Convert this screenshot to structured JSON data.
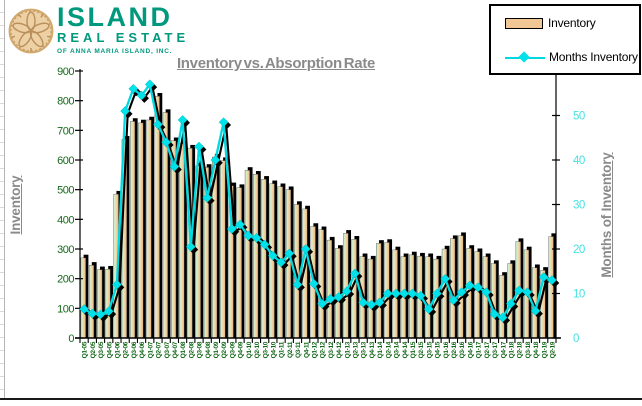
{
  "logo": {
    "title": "ISLAND",
    "subtitle": "REAL ESTATE",
    "tagline": "OF ANNA MARIA ISLAND, INC.",
    "icon": "sand-dollar-icon",
    "brand_color": "#00997E",
    "icon_color": "#EDD0A4"
  },
  "legend": {
    "items": [
      "Inventory",
      "Months Inventory"
    ],
    "position": "top-right"
  },
  "chart_data": {
    "type": "bar+line",
    "title": "Inventory vs. Absorption Rate",
    "grid": false,
    "categories": [
      "Q1-05",
      "Q2-05",
      "Q3-05",
      "Q4-05",
      "Q1-06",
      "Q2-06",
      "Q3-06",
      "Q4-06",
      "Q1-07",
      "Q2-07",
      "Q3-07",
      "Q4-07",
      "Q1-08",
      "Q2-08",
      "Q3-08",
      "Q4-08",
      "Q1-09",
      "Q2-09",
      "Q3-09",
      "Q4-09",
      "Q1-10",
      "Q2-10",
      "Q3-10",
      "Q4-10",
      "Q1-11",
      "Q2-11",
      "Q3-11",
      "Q4-11",
      "Q1-12",
      "Q2-12",
      "Q3-12",
      "Q4-12",
      "Q1-13",
      "Q2-13",
      "Q3-13",
      "Q4-13",
      "Q1-14",
      "Q2-14",
      "Q3-14",
      "Q4-14",
      "Q1-15",
      "Q2-15",
      "Q3-15",
      "Q4-15",
      "Q1-16",
      "Q2-16",
      "Q3-16",
      "Q4-16",
      "Q1-17",
      "Q2-17",
      "Q3-17",
      "Q4-17",
      "Q1-18",
      "Q2-18",
      "Q3-18",
      "Q4-18",
      "Q1-19",
      "Q2-19"
    ],
    "series": [
      {
        "name": "Inventory",
        "type": "bar",
        "axis": "left",
        "color": "#F0C795",
        "values": [
          270,
          245,
          230,
          232,
          485,
          670,
          730,
          725,
          735,
          815,
          760,
          665,
          655,
          640,
          580,
          575,
          610,
          598,
          513,
          507,
          565,
          552,
          535,
          520,
          510,
          500,
          450,
          435,
          376,
          365,
          330,
          302,
          353,
          333,
          274,
          266,
          319,
          322,
          297,
          274,
          280,
          276,
          274,
          266,
          300,
          335,
          345,
          302,
          291,
          274,
          251,
          211,
          251,
          325,
          297,
          237,
          228,
          342
        ]
      },
      {
        "name": "Months Inventory",
        "type": "line",
        "axis": "right",
        "color": "#00D9E1",
        "values": [
          6.5,
          5.5,
          5.3,
          6.0,
          12.0,
          51.0,
          56.0,
          54.5,
          57.0,
          48.0,
          44.0,
          38.5,
          49.0,
          20.5,
          43.0,
          31.5,
          40.0,
          48.5,
          24.5,
          25.5,
          23.0,
          22.5,
          21.0,
          18.5,
          17.0,
          19.0,
          12.0,
          20.0,
          12.2,
          7.7,
          8.8,
          9.2,
          10.5,
          14.5,
          8.0,
          7.5,
          8.0,
          10.0,
          10.0,
          10.0,
          10.0,
          9.5,
          6.5,
          10.0,
          13.3,
          8.5,
          10.3,
          11.8,
          11.4,
          10.3,
          5.4,
          4.6,
          7.7,
          10.7,
          10.3,
          6.1,
          13.7,
          13.0
        ]
      }
    ],
    "left_axis": {
      "title": "Inventory",
      "min": 0,
      "max": 900,
      "step": 100,
      "ticks": [
        "0",
        "100",
        "200",
        "300",
        "400",
        "500",
        "600",
        "700",
        "800",
        "900"
      ],
      "text_color": "#15691B"
    },
    "right_axis": {
      "title": "Months of Inventory",
      "min": 0,
      "max": 60,
      "step": 10,
      "ticks": [
        "0",
        "10",
        "20",
        "30",
        "40",
        "50"
      ],
      "text_color": "#45E1E1"
    },
    "x_axis": {
      "label_rotation": -90,
      "text_color": "#15691B"
    },
    "style_colors": {
      "bar_shadow": "#000000",
      "line_shadow": "#000000",
      "axis_line": "#000000",
      "title_gray": "#8a8a8a"
    }
  }
}
